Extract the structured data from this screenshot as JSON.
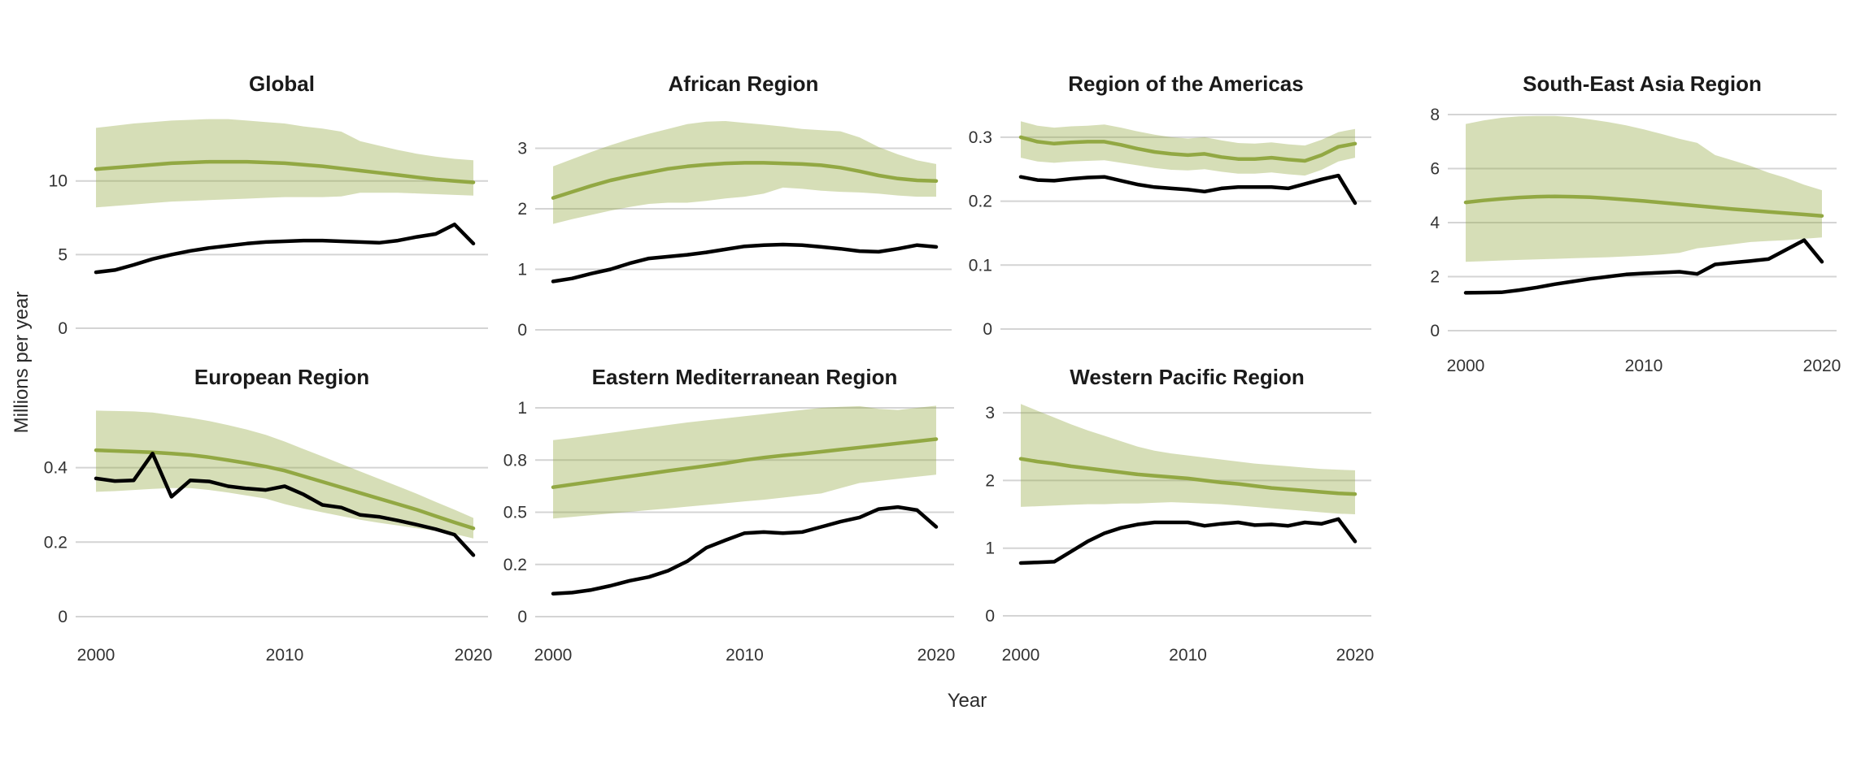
{
  "figure": {
    "y_axis_title": "Millions per year",
    "x_axis_title": "Year"
  },
  "colors": {
    "estimate_line": "#92A843",
    "uncertainty_fill": "rgba(146,168,67,0.38)",
    "observed_line": "#000000",
    "gridline": "#d4d4d4",
    "title_text": "#1a1a1a",
    "tick_text": "#333333"
  },
  "years": [
    2000,
    2001,
    2002,
    2003,
    2004,
    2005,
    2006,
    2007,
    2008,
    2009,
    2010,
    2011,
    2012,
    2013,
    2014,
    2015,
    2016,
    2017,
    2018,
    2019,
    2020
  ],
  "chart_data": [
    {
      "type": "line",
      "key": "global",
      "title": "Global",
      "ylabel": "Millions per year",
      "xlabel": "Year",
      "legend": "none",
      "grid": "horizontal-only",
      "yticks": [
        {
          "label": "10",
          "value": 10
        },
        {
          "label": "5",
          "value": 5
        },
        {
          "label": "0",
          "value": 0
        }
      ],
      "xticks": [
        {
          "label": "2000",
          "value": 2000
        },
        {
          "label": "2010",
          "value": 2010
        },
        {
          "label": "2020",
          "value": 2020
        }
      ],
      "xticks_shown": false,
      "series": [
        {
          "name": "estimate",
          "values": [
            10.8,
            10.9,
            11.0,
            11.1,
            11.2,
            11.25,
            11.3,
            11.3,
            11.3,
            11.25,
            11.2,
            11.1,
            11.0,
            10.85,
            10.7,
            10.55,
            10.4,
            10.25,
            10.1,
            10.0,
            9.9
          ]
        },
        {
          "name": "uncertainty_upper",
          "values": [
            13.6,
            13.75,
            13.9,
            14.0,
            14.1,
            14.15,
            14.2,
            14.2,
            14.1,
            14.0,
            13.9,
            13.7,
            13.55,
            13.35,
            12.7,
            12.4,
            12.1,
            11.85,
            11.65,
            11.5,
            11.4
          ]
        },
        {
          "name": "uncertainty_lower",
          "values": [
            8.2,
            8.3,
            8.4,
            8.5,
            8.6,
            8.65,
            8.7,
            8.75,
            8.8,
            8.85,
            8.9,
            8.9,
            8.9,
            8.95,
            9.2,
            9.2,
            9.2,
            9.15,
            9.1,
            9.05,
            9.0
          ]
        },
        {
          "name": "observed",
          "values": [
            3.8,
            3.95,
            4.3,
            4.7,
            5.0,
            5.25,
            5.45,
            5.6,
            5.75,
            5.85,
            5.9,
            5.95,
            5.95,
            5.9,
            5.85,
            5.8,
            5.95,
            6.2,
            6.4,
            7.05,
            5.75
          ]
        }
      ]
    },
    {
      "type": "line",
      "key": "african",
      "title": "African Region",
      "grid": "horizontal-only",
      "yticks": [
        {
          "label": "3",
          "value": 3
        },
        {
          "label": "2",
          "value": 2
        },
        {
          "label": "1",
          "value": 1
        },
        {
          "label": "0",
          "value": 0
        }
      ],
      "xticks": [
        {
          "label": "2000",
          "value": 2000
        },
        {
          "label": "2010",
          "value": 2010
        },
        {
          "label": "2020",
          "value": 2020
        }
      ],
      "xticks_shown": false,
      "series": [
        {
          "name": "estimate",
          "values": [
            2.18,
            2.28,
            2.38,
            2.47,
            2.54,
            2.6,
            2.66,
            2.7,
            2.73,
            2.75,
            2.76,
            2.76,
            2.75,
            2.74,
            2.72,
            2.68,
            2.62,
            2.55,
            2.5,
            2.47,
            2.46
          ]
        },
        {
          "name": "uncertainty_upper",
          "values": [
            2.7,
            2.82,
            2.94,
            3.05,
            3.15,
            3.24,
            3.32,
            3.4,
            3.44,
            3.45,
            3.42,
            3.39,
            3.36,
            3.32,
            3.3,
            3.28,
            3.18,
            3.02,
            2.9,
            2.8,
            2.74
          ]
        },
        {
          "name": "uncertainty_lower",
          "values": [
            1.75,
            1.83,
            1.9,
            1.97,
            2.03,
            2.08,
            2.1,
            2.1,
            2.13,
            2.17,
            2.2,
            2.25,
            2.35,
            2.33,
            2.3,
            2.28,
            2.27,
            2.25,
            2.22,
            2.2,
            2.2
          ]
        },
        {
          "name": "observed",
          "values": [
            0.8,
            0.85,
            0.93,
            1.0,
            1.1,
            1.18,
            1.21,
            1.24,
            1.28,
            1.33,
            1.38,
            1.4,
            1.41,
            1.4,
            1.37,
            1.34,
            1.3,
            1.29,
            1.34,
            1.4,
            1.37
          ]
        }
      ]
    },
    {
      "type": "line",
      "key": "americas",
      "title": "Region of the Americas",
      "grid": "horizontal-only",
      "yticks": [
        {
          "label": "0.3",
          "value": 0.3
        },
        {
          "label": "0.2",
          "value": 0.2
        },
        {
          "label": "0.1",
          "value": 0.1
        },
        {
          "label": "0",
          "value": 0
        }
      ],
      "xticks": [
        {
          "label": "2000",
          "value": 2000
        },
        {
          "label": "2010",
          "value": 2010
        },
        {
          "label": "2020",
          "value": 2020
        }
      ],
      "xticks_shown": false,
      "series": [
        {
          "name": "estimate",
          "values": [
            0.3,
            0.293,
            0.29,
            0.292,
            0.293,
            0.293,
            0.288,
            0.282,
            0.277,
            0.274,
            0.272,
            0.274,
            0.269,
            0.266,
            0.266,
            0.268,
            0.265,
            0.263,
            0.272,
            0.285,
            0.29
          ]
        },
        {
          "name": "uncertainty_upper",
          "values": [
            0.325,
            0.318,
            0.315,
            0.317,
            0.318,
            0.32,
            0.315,
            0.309,
            0.304,
            0.3,
            0.298,
            0.3,
            0.295,
            0.291,
            0.29,
            0.292,
            0.289,
            0.287,
            0.296,
            0.308,
            0.313
          ]
        },
        {
          "name": "uncertainty_lower",
          "values": [
            0.268,
            0.262,
            0.26,
            0.262,
            0.263,
            0.264,
            0.26,
            0.256,
            0.252,
            0.249,
            0.248,
            0.25,
            0.246,
            0.243,
            0.243,
            0.245,
            0.242,
            0.24,
            0.249,
            0.262,
            0.268
          ]
        },
        {
          "name": "observed",
          "values": [
            0.238,
            0.233,
            0.232,
            0.235,
            0.237,
            0.238,
            0.232,
            0.226,
            0.222,
            0.22,
            0.218,
            0.215,
            0.22,
            0.222,
            0.222,
            0.222,
            0.22,
            0.227,
            0.234,
            0.24,
            0.197
          ]
        }
      ]
    },
    {
      "type": "line",
      "key": "south_east_asia",
      "title": "South-East Asia Region",
      "grid": "horizontal-only",
      "yticks": [
        {
          "label": "8",
          "value": 8
        },
        {
          "label": "6",
          "value": 6
        },
        {
          "label": "4",
          "value": 4
        },
        {
          "label": "2",
          "value": 2
        },
        {
          "label": "0",
          "value": 0
        }
      ],
      "xticks": [
        {
          "label": "2000",
          "value": 2000
        },
        {
          "label": "2010",
          "value": 2010
        },
        {
          "label": "2020",
          "value": 2020
        }
      ],
      "xticks_shown": true,
      "series": [
        {
          "name": "estimate",
          "values": [
            4.75,
            4.82,
            4.88,
            4.93,
            4.96,
            4.97,
            4.96,
            4.94,
            4.9,
            4.85,
            4.8,
            4.74,
            4.68,
            4.62,
            4.56,
            4.5,
            4.45,
            4.4,
            4.35,
            4.3,
            4.25
          ]
        },
        {
          "name": "uncertainty_upper",
          "values": [
            7.65,
            7.78,
            7.88,
            7.93,
            7.95,
            7.95,
            7.9,
            7.82,
            7.72,
            7.6,
            7.45,
            7.28,
            7.1,
            6.95,
            6.5,
            6.3,
            6.1,
            5.85,
            5.65,
            5.4,
            5.2
          ]
        },
        {
          "name": "uncertainty_lower",
          "values": [
            2.55,
            2.57,
            2.6,
            2.62,
            2.64,
            2.66,
            2.68,
            2.7,
            2.72,
            2.75,
            2.78,
            2.82,
            2.88,
            3.05,
            3.12,
            3.2,
            3.28,
            3.32,
            3.35,
            3.4,
            3.45
          ]
        },
        {
          "name": "observed",
          "values": [
            1.4,
            1.41,
            1.42,
            1.5,
            1.6,
            1.72,
            1.82,
            1.92,
            2.0,
            2.08,
            2.12,
            2.15,
            2.18,
            2.1,
            2.45,
            2.52,
            2.58,
            2.65,
            3.0,
            3.35,
            2.55
          ]
        }
      ]
    },
    {
      "type": "line",
      "key": "european",
      "title": "European Region",
      "grid": "horizontal-only",
      "yticks": [
        {
          "label": "0.4",
          "value": 0.4
        },
        {
          "label": "0.2",
          "value": 0.2
        },
        {
          "label": "0",
          "value": 0
        }
      ],
      "xticks": [
        {
          "label": "2000",
          "value": 2000
        },
        {
          "label": "2010",
          "value": 2010
        },
        {
          "label": "2020",
          "value": 2020
        }
      ],
      "xticks_shown": true,
      "series": [
        {
          "name": "estimate",
          "values": [
            0.447,
            0.445,
            0.443,
            0.441,
            0.438,
            0.434,
            0.428,
            0.42,
            0.412,
            0.403,
            0.392,
            0.377,
            0.362,
            0.347,
            0.332,
            0.317,
            0.302,
            0.287,
            0.27,
            0.253,
            0.237
          ]
        },
        {
          "name": "uncertainty_upper",
          "values": [
            0.553,
            0.552,
            0.551,
            0.548,
            0.541,
            0.534,
            0.525,
            0.514,
            0.502,
            0.488,
            0.47,
            0.45,
            0.43,
            0.41,
            0.39,
            0.37,
            0.35,
            0.33,
            0.308,
            0.287,
            0.265
          ]
        },
        {
          "name": "uncertainty_lower",
          "values": [
            0.335,
            0.337,
            0.34,
            0.343,
            0.345,
            0.345,
            0.34,
            0.333,
            0.325,
            0.317,
            0.302,
            0.29,
            0.28,
            0.27,
            0.26,
            0.252,
            0.245,
            0.237,
            0.23,
            0.222,
            0.21
          ]
        },
        {
          "name": "observed",
          "values": [
            0.371,
            0.364,
            0.366,
            0.438,
            0.322,
            0.366,
            0.363,
            0.35,
            0.344,
            0.34,
            0.35,
            0.328,
            0.3,
            0.293,
            0.273,
            0.268,
            0.258,
            0.247,
            0.235,
            0.22,
            0.165
          ]
        }
      ]
    },
    {
      "type": "line",
      "key": "eastern_mediterranean",
      "title": "Eastern Mediterranean Region",
      "grid": "horizontal-only",
      "yticks": [
        {
          "label": "1",
          "value": 1
        },
        {
          "label": "0.8",
          "value": 0.75
        },
        {
          "label": "0.5",
          "value": 0.5
        },
        {
          "label": "0.2",
          "value": 0.25
        },
        {
          "label": "0",
          "value": 0
        }
      ],
      "xticks": [
        {
          "label": "2000",
          "value": 2000
        },
        {
          "label": "2010",
          "value": 2010
        },
        {
          "label": "2020",
          "value": 2020
        }
      ],
      "xticks_shown": true,
      "series": [
        {
          "name": "estimate",
          "values": [
            0.62,
            0.633,
            0.646,
            0.659,
            0.672,
            0.685,
            0.698,
            0.71,
            0.722,
            0.735,
            0.75,
            0.762,
            0.772,
            0.78,
            0.79,
            0.8,
            0.81,
            0.82,
            0.83,
            0.84,
            0.85
          ]
        },
        {
          "name": "uncertainty_upper",
          "values": [
            0.845,
            0.856,
            0.868,
            0.88,
            0.893,
            0.905,
            0.918,
            0.93,
            0.94,
            0.95,
            0.96,
            0.97,
            0.98,
            0.99,
            1.0,
            1.005,
            1.008,
            0.995,
            0.99,
            1.0,
            1.01
          ]
        },
        {
          "name": "uncertainty_lower",
          "values": [
            0.47,
            0.478,
            0.486,
            0.494,
            0.502,
            0.51,
            0.518,
            0.527,
            0.535,
            0.543,
            0.552,
            0.56,
            0.57,
            0.58,
            0.59,
            0.615,
            0.64,
            0.65,
            0.66,
            0.67,
            0.68
          ]
        },
        {
          "name": "observed",
          "values": [
            0.11,
            0.115,
            0.128,
            0.148,
            0.172,
            0.19,
            0.22,
            0.265,
            0.33,
            0.366,
            0.4,
            0.405,
            0.4,
            0.405,
            0.43,
            0.455,
            0.475,
            0.515,
            0.525,
            0.51,
            0.43
          ]
        }
      ]
    },
    {
      "type": "line",
      "key": "western_pacific",
      "title": "Western Pacific Region",
      "grid": "horizontal-only",
      "yticks": [
        {
          "label": "3",
          "value": 3
        },
        {
          "label": "2",
          "value": 2
        },
        {
          "label": "1",
          "value": 1
        },
        {
          "label": "0",
          "value": 0
        }
      ],
      "xticks": [
        {
          "label": "2000",
          "value": 2000
        },
        {
          "label": "2010",
          "value": 2010
        },
        {
          "label": "2020",
          "value": 2020
        }
      ],
      "xticks_shown": true,
      "series": [
        {
          "name": "estimate",
          "values": [
            2.32,
            2.28,
            2.25,
            2.21,
            2.18,
            2.15,
            2.12,
            2.09,
            2.07,
            2.05,
            2.03,
            2.0,
            1.97,
            1.95,
            1.92,
            1.89,
            1.87,
            1.85,
            1.83,
            1.81,
            1.8
          ]
        },
        {
          "name": "uncertainty_upper",
          "values": [
            3.13,
            3.03,
            2.93,
            2.83,
            2.74,
            2.66,
            2.58,
            2.5,
            2.44,
            2.4,
            2.37,
            2.34,
            2.31,
            2.28,
            2.25,
            2.23,
            2.21,
            2.19,
            2.17,
            2.16,
            2.15
          ]
        },
        {
          "name": "uncertainty_lower",
          "values": [
            1.61,
            1.62,
            1.63,
            1.64,
            1.65,
            1.65,
            1.66,
            1.66,
            1.67,
            1.68,
            1.67,
            1.66,
            1.65,
            1.63,
            1.61,
            1.59,
            1.57,
            1.55,
            1.53,
            1.51,
            1.5
          ]
        },
        {
          "name": "observed",
          "values": [
            0.78,
            0.79,
            0.8,
            0.95,
            1.1,
            1.22,
            1.3,
            1.35,
            1.38,
            1.38,
            1.38,
            1.33,
            1.36,
            1.38,
            1.34,
            1.35,
            1.33,
            1.38,
            1.36,
            1.43,
            1.1
          ]
        }
      ]
    }
  ]
}
